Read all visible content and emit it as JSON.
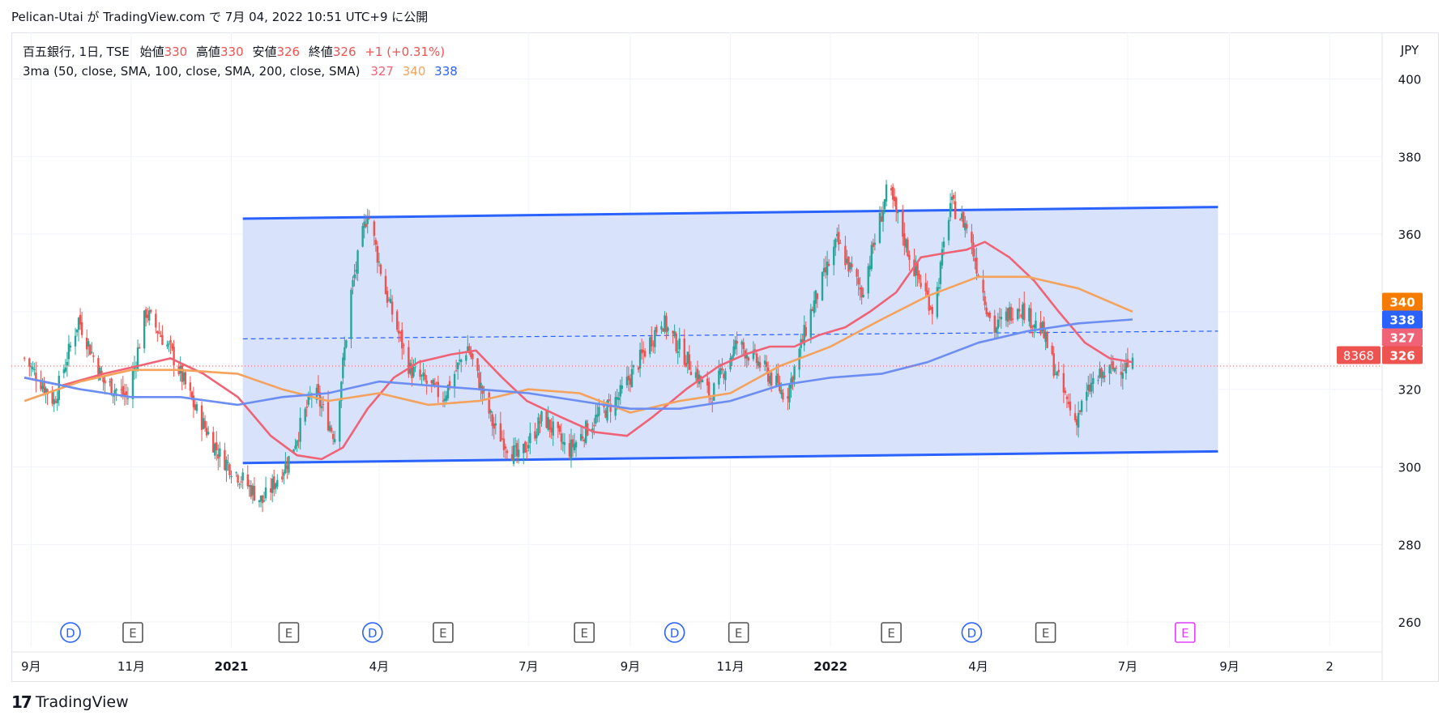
{
  "header": {
    "publish_line": "Pelican-Utai が TradingView.com で 7月 04, 2022 10:51 UTC+9 に公開"
  },
  "legend": {
    "symbol": "百五銀行, 1日, TSE",
    "open_label": "始値",
    "open": "330",
    "high_label": "高値",
    "high": "330",
    "low_label": "安値",
    "low": "326",
    "close_label": "終値",
    "close": "326",
    "change": "+1 (+0.31%)",
    "ma_title": "3ma (50, close, SMA, 100, close, SMA, 200, close, SMA)",
    "ma50": "327",
    "ma100": "340",
    "ma200": "338"
  },
  "footer": {
    "brand": "TradingView"
  },
  "colors": {
    "up": "#26a69a",
    "down": "#ef5350",
    "ma50": "#f06275",
    "ma100": "#f5a25d",
    "ma200": "#6c8ef2",
    "channel_line": "#2962ff",
    "channel_fill": "#d6e0fb",
    "dividend": "#2962ff",
    "earnings": "#555555",
    "earnings_future": "#e040fb"
  },
  "chart_data": {
    "type": "candlestick",
    "currency_label": "JPY",
    "y_ticks": [
      260,
      280,
      300,
      320,
      340,
      360,
      380,
      400
    ],
    "ylim": [
      245,
      412
    ],
    "x_ticks": [
      "9月",
      "11月",
      "2021",
      "4月",
      "7月",
      "9月",
      "11月",
      "2022",
      "4月",
      "7月",
      "9月",
      "2"
    ],
    "price_labels": [
      {
        "series": "ma100",
        "value": 340
      },
      {
        "series": "ma200",
        "value": 338
      },
      {
        "series": "ma50",
        "value": 327
      },
      {
        "series": "last",
        "value": 326,
        "countdown": "8368"
      }
    ],
    "channel": {
      "upper": [
        {
          "date": "2021-01-08",
          "value": 364
        },
        {
          "date": "2022-08-25",
          "value": 367
        }
      ],
      "lower": [
        {
          "date": "2021-01-08",
          "value": 301
        },
        {
          "date": "2022-08-25",
          "value": 304
        }
      ],
      "middle_dashed": [
        {
          "date": "2021-01-08",
          "value": 333
        },
        {
          "date": "2022-08-25",
          "value": 335
        }
      ]
    },
    "price_path": [
      [
        "2020-08-28",
        328
      ],
      [
        "2020-09-15",
        317
      ],
      [
        "2020-09-30",
        338
      ],
      [
        "2020-10-15",
        322
      ],
      [
        "2020-10-30",
        318
      ],
      [
        "2020-11-10",
        340
      ],
      [
        "2020-11-25",
        330
      ],
      [
        "2020-12-10",
        315
      ],
      [
        "2020-12-25",
        303
      ],
      [
        "2021-01-05",
        298
      ],
      [
        "2021-01-20",
        291
      ],
      [
        "2021-02-05",
        302
      ],
      [
        "2021-02-20",
        320
      ],
      [
        "2021-03-05",
        308
      ],
      [
        "2021-03-15",
        345
      ],
      [
        "2021-03-25",
        366
      ],
      [
        "2021-04-05",
        345
      ],
      [
        "2021-04-20",
        325
      ],
      [
        "2021-05-10",
        318
      ],
      [
        "2021-05-25",
        331
      ],
      [
        "2021-06-10",
        310
      ],
      [
        "2021-06-25",
        302
      ],
      [
        "2021-07-10",
        313
      ],
      [
        "2021-07-25",
        304
      ],
      [
        "2021-08-10",
        312
      ],
      [
        "2021-08-25",
        318
      ],
      [
        "2021-09-10",
        330
      ],
      [
        "2021-09-20",
        338
      ],
      [
        "2021-10-05",
        328
      ],
      [
        "2021-10-20",
        318
      ],
      [
        "2021-11-05",
        332
      ],
      [
        "2021-11-20",
        326
      ],
      [
        "2021-12-05",
        318
      ],
      [
        "2021-12-20",
        340
      ],
      [
        "2022-01-05",
        358
      ],
      [
        "2022-01-20",
        345
      ],
      [
        "2022-02-05",
        372
      ],
      [
        "2022-02-20",
        352
      ],
      [
        "2022-03-05",
        340
      ],
      [
        "2022-03-15",
        368
      ],
      [
        "2022-03-25",
        362
      ],
      [
        "2022-04-10",
        335
      ],
      [
        "2022-04-25",
        342
      ],
      [
        "2022-05-10",
        335
      ],
      [
        "2022-05-20",
        322
      ],
      [
        "2022-05-30",
        312
      ],
      [
        "2022-06-10",
        322
      ],
      [
        "2022-06-25",
        326
      ],
      [
        "2022-07-04",
        326
      ]
    ],
    "series": [
      {
        "name": "ma50",
        "values": [
          [
            "2020-08-28",
            323
          ],
          [
            "2020-09-20",
            321
          ],
          [
            "2020-10-15",
            324
          ],
          [
            "2020-11-05",
            326
          ],
          [
            "2020-11-25",
            328
          ],
          [
            "2020-12-15",
            324
          ],
          [
            "2021-01-05",
            318
          ],
          [
            "2021-01-25",
            308
          ],
          [
            "2021-02-10",
            303
          ],
          [
            "2021-02-25",
            302
          ],
          [
            "2021-03-10",
            305
          ],
          [
            "2021-03-25",
            315
          ],
          [
            "2021-04-10",
            323
          ],
          [
            "2021-04-25",
            327
          ],
          [
            "2021-05-15",
            329
          ],
          [
            "2021-05-30",
            330
          ],
          [
            "2021-06-15",
            323
          ],
          [
            "2021-06-30",
            317
          ],
          [
            "2021-07-20",
            313
          ],
          [
            "2021-08-10",
            309
          ],
          [
            "2021-08-30",
            308
          ],
          [
            "2021-09-15",
            313
          ],
          [
            "2021-10-05",
            320
          ],
          [
            "2021-10-25",
            326
          ],
          [
            "2021-11-10",
            329
          ],
          [
            "2021-11-25",
            331
          ],
          [
            "2021-12-10",
            331
          ],
          [
            "2021-12-25",
            334
          ],
          [
            "2022-01-10",
            336
          ],
          [
            "2022-01-25",
            340
          ],
          [
            "2022-02-10",
            345
          ],
          [
            "2022-02-25",
            354
          ],
          [
            "2022-03-10",
            355
          ],
          [
            "2022-03-25",
            356
          ],
          [
            "2022-04-05",
            358
          ],
          [
            "2022-04-20",
            354
          ],
          [
            "2022-05-05",
            348
          ],
          [
            "2022-05-20",
            340
          ],
          [
            "2022-06-05",
            332
          ],
          [
            "2022-06-20",
            328
          ],
          [
            "2022-07-04",
            327
          ]
        ]
      },
      {
        "name": "ma100",
        "values": [
          [
            "2020-08-28",
            317
          ],
          [
            "2020-10-01",
            322
          ],
          [
            "2020-11-01",
            325
          ],
          [
            "2020-12-01",
            325
          ],
          [
            "2021-01-05",
            324
          ],
          [
            "2021-02-01",
            320
          ],
          [
            "2021-03-01",
            317
          ],
          [
            "2021-04-01",
            319
          ],
          [
            "2021-05-01",
            316
          ],
          [
            "2021-06-01",
            317
          ],
          [
            "2021-07-01",
            320
          ],
          [
            "2021-08-01",
            319
          ],
          [
            "2021-09-01",
            314
          ],
          [
            "2021-10-01",
            317
          ],
          [
            "2021-11-01",
            319
          ],
          [
            "2021-12-01",
            326
          ],
          [
            "2022-01-01",
            331
          ],
          [
            "2022-02-01",
            338
          ],
          [
            "2022-03-01",
            344
          ],
          [
            "2022-04-01",
            349
          ],
          [
            "2022-05-01",
            349
          ],
          [
            "2022-06-01",
            346
          ],
          [
            "2022-07-04",
            340
          ]
        ]
      },
      {
        "name": "ma200",
        "values": [
          [
            "2020-08-28",
            323
          ],
          [
            "2020-10-01",
            320
          ],
          [
            "2020-11-01",
            318
          ],
          [
            "2020-12-01",
            318
          ],
          [
            "2021-01-05",
            316
          ],
          [
            "2021-02-01",
            318
          ],
          [
            "2021-03-01",
            319
          ],
          [
            "2021-04-01",
            322
          ],
          [
            "2021-05-01",
            321
          ],
          [
            "2021-06-01",
            320
          ],
          [
            "2021-07-01",
            319
          ],
          [
            "2021-08-01",
            317
          ],
          [
            "2021-09-01",
            315
          ],
          [
            "2021-10-01",
            315
          ],
          [
            "2021-11-01",
            317
          ],
          [
            "2021-12-01",
            321
          ],
          [
            "2022-01-01",
            323
          ],
          [
            "2022-02-01",
            324
          ],
          [
            "2022-03-01",
            327
          ],
          [
            "2022-04-01",
            332
          ],
          [
            "2022-05-01",
            335
          ],
          [
            "2022-06-01",
            337
          ],
          [
            "2022-07-04",
            338
          ]
        ]
      }
    ],
    "events": [
      {
        "type": "D",
        "date": "2020-09-25"
      },
      {
        "type": "E",
        "date": "2020-11-02"
      },
      {
        "type": "E",
        "date": "2021-02-05"
      },
      {
        "type": "D",
        "date": "2021-03-28"
      },
      {
        "type": "E",
        "date": "2021-05-10"
      },
      {
        "type": "E",
        "date": "2021-08-04"
      },
      {
        "type": "D",
        "date": "2021-09-28"
      },
      {
        "type": "E",
        "date": "2021-11-06"
      },
      {
        "type": "E",
        "date": "2022-02-07"
      },
      {
        "type": "D",
        "date": "2022-03-28"
      },
      {
        "type": "E",
        "date": "2022-05-12"
      },
      {
        "type": "E",
        "date": "2022-08-05",
        "future": true
      }
    ]
  }
}
